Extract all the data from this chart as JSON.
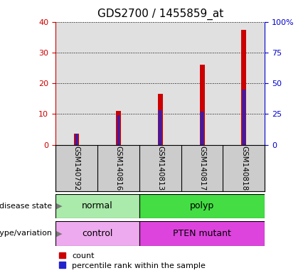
{
  "title": "GDS2700 / 1455859_at",
  "samples": [
    "GSM140792",
    "GSM140816",
    "GSM140813",
    "GSM140817",
    "GSM140818"
  ],
  "count_values": [
    3.5,
    11,
    16.5,
    26,
    37.5
  ],
  "percentile_values": [
    9,
    24,
    28,
    27,
    45
  ],
  "ylim_left": [
    0,
    40
  ],
  "ylim_right": [
    0,
    100
  ],
  "yticks_left": [
    0,
    10,
    20,
    30,
    40
  ],
  "yticks_right": [
    0,
    25,
    50,
    75,
    100
  ],
  "yticklabels_left": [
    "0",
    "10",
    "20",
    "30",
    "40"
  ],
  "yticklabels_right": [
    "0",
    "25",
    "50",
    "75",
    "100%"
  ],
  "bar_color_red": "#cc0000",
  "bar_color_blue": "#2222cc",
  "red_bar_width": 0.12,
  "blue_bar_width": 0.06,
  "disease_state": [
    {
      "label": "normal",
      "samples": [
        0,
        1
      ],
      "color": "#aaeaaa"
    },
    {
      "label": "polyp",
      "samples": [
        2,
        3,
        4
      ],
      "color": "#44dd44"
    }
  ],
  "genotype_variation": [
    {
      "label": "control",
      "samples": [
        0,
        1
      ],
      "color": "#eeaaee"
    },
    {
      "label": "PTEN mutant",
      "samples": [
        2,
        3,
        4
      ],
      "color": "#dd44dd"
    }
  ],
  "disease_state_label": "disease state",
  "genotype_label": "genotype/variation",
  "legend_count": "count",
  "legend_percentile": "percentile rank within the sample",
  "bg_color": "#ffffff",
  "plot_bg_color": "#e0e0e0",
  "xlabel_bg_color": "#cccccc",
  "left_axis_color": "#cc0000",
  "right_axis_color": "#0000cc"
}
